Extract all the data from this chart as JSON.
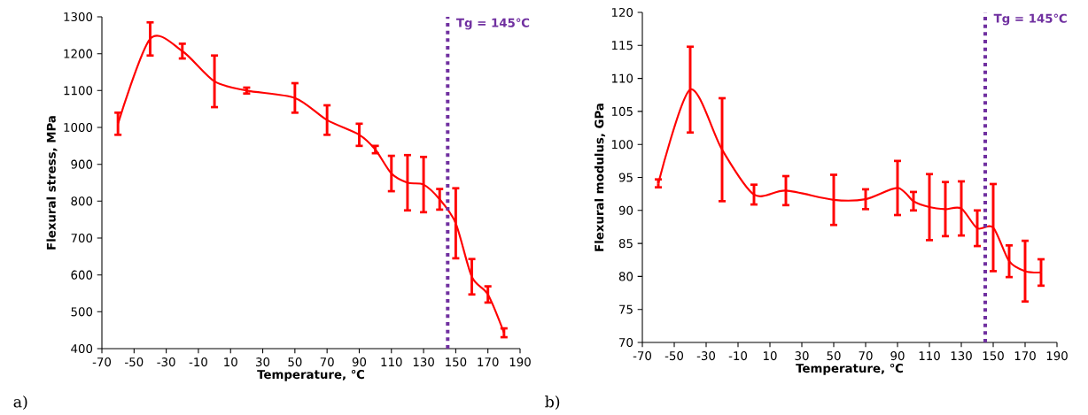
{
  "chart_data": [
    {
      "type": "line",
      "xlabel": "Temperature, ℃",
      "ylabel": "Flexural stress, MPa",
      "color": "#ff0000",
      "line_style": "solid",
      "x": [
        -60,
        -40,
        -20,
        0,
        20,
        50,
        70,
        90,
        100,
        110,
        120,
        130,
        140,
        150,
        160,
        170,
        180
      ],
      "values": [
        1010,
        1240,
        1207,
        1125,
        1100,
        1080,
        1020,
        980,
        940,
        875,
        850,
        845,
        805,
        740,
        595,
        547,
        443
      ],
      "errors": [
        30,
        45,
        20,
        70,
        8,
        40,
        40,
        30,
        10,
        48,
        75,
        75,
        28,
        95,
        48,
        22,
        12
      ],
      "xlim": [
        -70,
        190
      ],
      "ylim": [
        400,
        1300
      ],
      "xticks": [
        -70,
        -50,
        -30,
        -10,
        10,
        30,
        50,
        70,
        90,
        110,
        130,
        150,
        170,
        190
      ],
      "yticks": [
        400,
        500,
        600,
        700,
        800,
        900,
        1000,
        1100,
        1200,
        1300
      ],
      "ref_lines": [
        {
          "axis": "x",
          "value": 145,
          "label": "Tg = 145℃",
          "color": "#7030a0",
          "line_style": "dotted"
        }
      ],
      "annotations": [
        "a)"
      ]
    },
    {
      "type": "line",
      "xlabel": "Temperature, ℃",
      "ylabel": "Flexural modulus, GPa",
      "color": "#ff0000",
      "line_style": "solid",
      "x": [
        -60,
        -40,
        -20,
        0,
        20,
        50,
        70,
        90,
        100,
        110,
        120,
        130,
        140,
        150,
        160,
        170,
        180
      ],
      "values": [
        94.1,
        108.3,
        99.2,
        92.4,
        93.0,
        91.6,
        91.7,
        93.4,
        91.4,
        90.5,
        90.2,
        90.3,
        87.3,
        87.4,
        82.3,
        80.8,
        80.6
      ],
      "errors": [
        0.6,
        6.5,
        7.8,
        1.5,
        2.2,
        3.8,
        1.5,
        4.1,
        1.4,
        5.0,
        4.1,
        4.1,
        2.7,
        6.6,
        2.4,
        4.6,
        2.0
      ],
      "xlim": [
        -70,
        190
      ],
      "ylim": [
        70,
        120
      ],
      "xticks": [
        -70,
        -50,
        -30,
        -10,
        10,
        30,
        50,
        70,
        90,
        110,
        130,
        150,
        170,
        190
      ],
      "yticks": [
        70,
        75,
        80,
        85,
        90,
        95,
        100,
        105,
        110,
        115,
        120
      ],
      "ref_lines": [
        {
          "axis": "x",
          "value": 145,
          "label": "Tg = 145℃",
          "color": "#7030a0",
          "line_style": "dotted"
        }
      ],
      "annotations": [
        "b)"
      ]
    }
  ]
}
